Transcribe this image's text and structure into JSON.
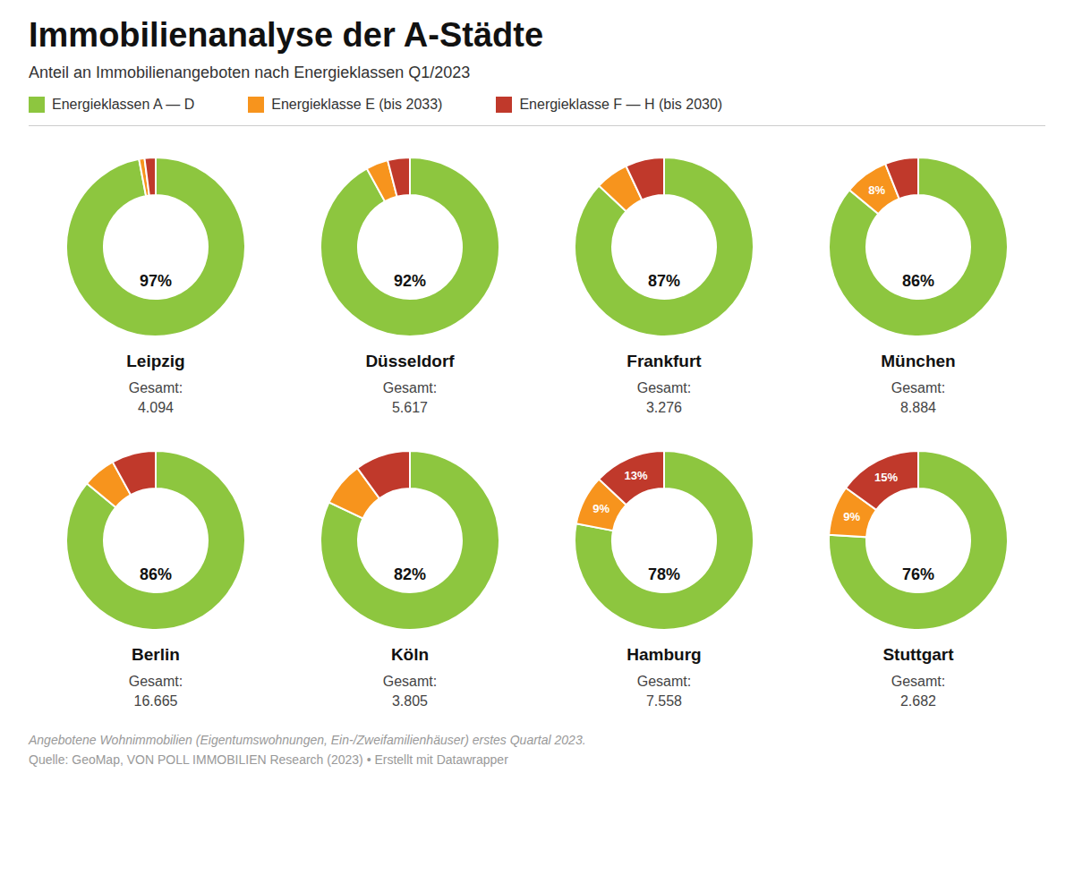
{
  "title": "Immobilienanalyse der A-Städte",
  "subtitle": "Anteil an Immobilienangeboten nach Energieklassen Q1/2023",
  "legend": "top",
  "annotations": [
    "Angebotene Wohnimmobilien (Eigentumswohnungen, Ein-/Zweifamilienhäuser) erstes Quartal 2023.",
    "Quelle: GeoMap, VON POLL IMMOBILIEN Research (2023) • Erstellt mit Datawrapper"
  ],
  "chart_data": [
    {
      "type": "pie",
      "title": "Leipzig",
      "categories": [
        "Energieklassen A — D",
        "Energieklasse E (bis 2033)",
        "Energieklasse F — H (bis 2030)"
      ],
      "values": [
        97,
        1,
        2
      ],
      "value_labels": [
        "97%",
        null,
        null
      ],
      "data_labels": true,
      "colors": [
        "#8dc63f",
        "#f7941d",
        "#c0392b"
      ],
      "annotations": [
        "Gesamt:",
        "4.094"
      ]
    },
    {
      "type": "pie",
      "title": "Düsseldorf",
      "categories": [
        "Energieklassen A — D",
        "Energieklasse E (bis 2033)",
        "Energieklasse F — H (bis 2030)"
      ],
      "values": [
        92,
        4,
        4
      ],
      "value_labels": [
        "92%",
        null,
        null
      ],
      "data_labels": true,
      "colors": [
        "#8dc63f",
        "#f7941d",
        "#c0392b"
      ],
      "annotations": [
        "Gesamt:",
        "5.617"
      ]
    },
    {
      "type": "pie",
      "title": "Frankfurt",
      "categories": [
        "Energieklassen A — D",
        "Energieklasse E (bis 2033)",
        "Energieklasse F — H (bis 2030)"
      ],
      "values": [
        87,
        6,
        7
      ],
      "value_labels": [
        "87%",
        null,
        null
      ],
      "data_labels": true,
      "colors": [
        "#8dc63f",
        "#f7941d",
        "#c0392b"
      ],
      "annotations": [
        "Gesamt:",
        "3.276"
      ]
    },
    {
      "type": "pie",
      "title": "München",
      "categories": [
        "Energieklassen A — D",
        "Energieklasse E (bis 2033)",
        "Energieklasse F — H (bis 2030)"
      ],
      "values": [
        86,
        8,
        6
      ],
      "value_labels": [
        "86%",
        "8%",
        null
      ],
      "data_labels": true,
      "colors": [
        "#8dc63f",
        "#f7941d",
        "#c0392b"
      ],
      "annotations": [
        "Gesamt:",
        "8.884"
      ]
    },
    {
      "type": "pie",
      "title": "Berlin",
      "categories": [
        "Energieklassen A — D",
        "Energieklasse E (bis 2033)",
        "Energieklasse F — H (bis 2030)"
      ],
      "values": [
        86,
        6,
        8
      ],
      "value_labels": [
        "86%",
        null,
        null
      ],
      "data_labels": true,
      "colors": [
        "#8dc63f",
        "#f7941d",
        "#c0392b"
      ],
      "annotations": [
        "Gesamt:",
        "16.665"
      ]
    },
    {
      "type": "pie",
      "title": "Köln",
      "categories": [
        "Energieklassen A — D",
        "Energieklasse E (bis 2033)",
        "Energieklasse F — H (bis 2030)"
      ],
      "values": [
        82,
        8,
        10
      ],
      "value_labels": [
        "82%",
        null,
        null
      ],
      "data_labels": true,
      "colors": [
        "#8dc63f",
        "#f7941d",
        "#c0392b"
      ],
      "annotations": [
        "Gesamt:",
        "3.805"
      ]
    },
    {
      "type": "pie",
      "title": "Hamburg",
      "categories": [
        "Energieklassen A — D",
        "Energieklasse E (bis 2033)",
        "Energieklasse F — H (bis 2030)"
      ],
      "values": [
        78,
        9,
        13
      ],
      "value_labels": [
        "78%",
        "9%",
        "13%"
      ],
      "data_labels": true,
      "colors": [
        "#8dc63f",
        "#f7941d",
        "#c0392b"
      ],
      "annotations": [
        "Gesamt:",
        "7.558"
      ]
    },
    {
      "type": "pie",
      "title": "Stuttgart",
      "categories": [
        "Energieklassen A — D",
        "Energieklasse E (bis 2033)",
        "Energieklasse F — H (bis 2030)"
      ],
      "values": [
        76,
        9,
        15
      ],
      "value_labels": [
        "76%",
        "9%",
        "15%"
      ],
      "data_labels": true,
      "colors": [
        "#8dc63f",
        "#f7941d",
        "#c0392b"
      ],
      "annotations": [
        "Gesamt:",
        "2.682"
      ]
    }
  ]
}
